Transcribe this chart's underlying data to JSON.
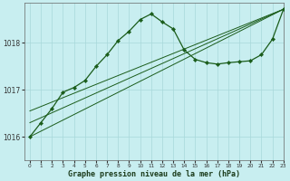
{
  "title": "Graphe pression niveau de la mer (hPa)",
  "background_color": "#c8eef0",
  "plot_bg_color": "#c8eef0",
  "grid_color": "#a8d8da",
  "line_color": "#1a5c1a",
  "xlim": [
    -0.5,
    23
  ],
  "ylim": [
    1015.5,
    1018.85
  ],
  "yticks": [
    1016,
    1017,
    1018
  ],
  "xticks": [
    0,
    1,
    2,
    3,
    4,
    5,
    6,
    7,
    8,
    9,
    10,
    11,
    12,
    13,
    14,
    15,
    16,
    17,
    18,
    19,
    20,
    21,
    22,
    23
  ],
  "trend1_x": [
    0,
    23
  ],
  "trend1_y": [
    1016.0,
    1018.72
  ],
  "trend2_x": [
    0,
    23
  ],
  "trend2_y": [
    1016.3,
    1018.72
  ],
  "trend3_x": [
    0,
    23
  ],
  "trend3_y": [
    1016.55,
    1018.72
  ],
  "main_x": [
    0,
    1,
    2,
    3,
    4,
    5,
    6,
    7,
    8,
    9,
    10,
    11,
    12,
    13,
    14,
    15,
    16,
    17,
    18,
    19,
    20,
    21,
    22,
    23
  ],
  "main_y": [
    1016.0,
    1016.3,
    1016.6,
    1016.95,
    1017.05,
    1017.2,
    1017.5,
    1017.75,
    1018.05,
    1018.25,
    1018.5,
    1018.62,
    1018.45,
    1018.3,
    1017.85,
    1017.65,
    1017.58,
    1017.55,
    1017.58,
    1017.6,
    1017.62,
    1017.75,
    1018.08,
    1018.72
  ]
}
